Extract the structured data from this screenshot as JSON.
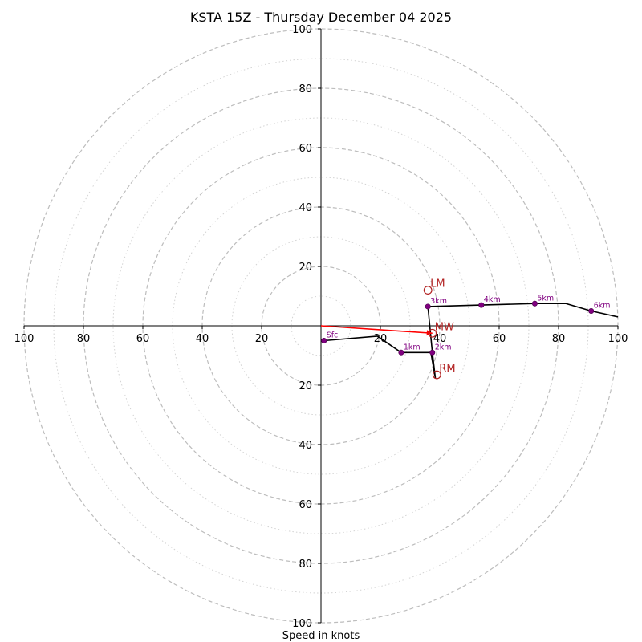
{
  "chart_data": {
    "type": "hodograph",
    "title": "KSTA 15Z - Thursday December 04 2025",
    "xlabel": "Speed in knots",
    "units": "knots",
    "max_speed": 100,
    "major_rings": [
      20,
      40,
      60,
      80,
      100
    ],
    "minor_rings": [
      10,
      30,
      50,
      70,
      90
    ],
    "tick_labels": [
      "20",
      "40",
      "60",
      "80",
      "100"
    ],
    "colors": {
      "trace": "#000000",
      "height_marker": "#800080",
      "motion": "#b22222",
      "mean_wind_vector": "#ff0000",
      "grid": "#bdbdbd"
    },
    "hodograph": {
      "u": [
        1,
        19,
        27,
        37,
        38.5,
        37.5,
        36,
        54,
        72,
        82.5,
        91,
        100
      ],
      "v": [
        -5,
        -3.5,
        -9,
        -9,
        -17.5,
        -9,
        6.5,
        7,
        7.5,
        7.5,
        5,
        3
      ]
    },
    "height_markers": [
      {
        "label": "Sfc",
        "u": 1,
        "v": -5
      },
      {
        "label": "1km",
        "u": 27,
        "v": -9
      },
      {
        "label": "2km",
        "u": 37.5,
        "v": -9
      },
      {
        "label": "3km",
        "u": 36,
        "v": 6.5
      },
      {
        "label": "4km",
        "u": 54,
        "v": 7
      },
      {
        "label": "5km",
        "u": 72,
        "v": 7.5
      },
      {
        "label": "6km",
        "u": 91,
        "v": 5
      }
    ],
    "storm_motions": [
      {
        "label": "LM",
        "u": 36,
        "v": 12
      },
      {
        "label": "MW",
        "u": 37.5,
        "v": -2.5
      },
      {
        "label": "RM",
        "u": 39,
        "v": -16.5
      }
    ],
    "mean_wind_vector": {
      "u": 37.5,
      "v": -2.5
    }
  }
}
